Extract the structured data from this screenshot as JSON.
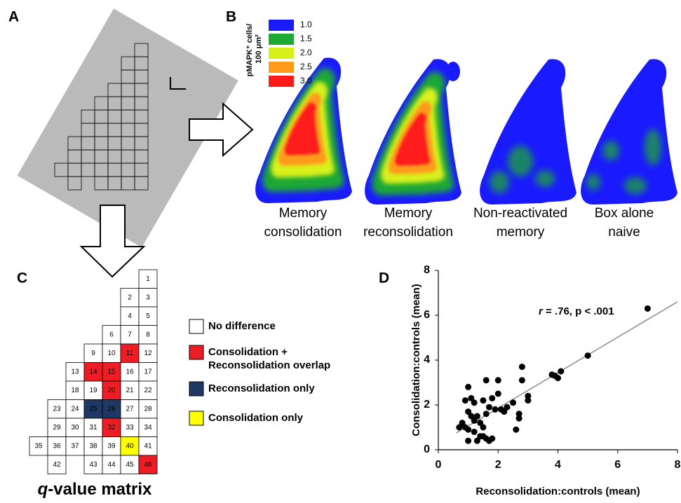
{
  "panel_labels": [
    "A",
    "B",
    "C",
    "D"
  ],
  "heatmap": {
    "legend_title": [
      "pMAPK⁺ cells/",
      "100 μm²"
    ],
    "legend": [
      {
        "label": "1.0",
        "color": "#1a1aff"
      },
      {
        "label": "1.5",
        "color": "#1fa834"
      },
      {
        "label": "2.0",
        "color": "#d8f01a"
      },
      {
        "label": "2.5",
        "color": "#ff9a1a"
      },
      {
        "label": "3.0",
        "color": "#ff1a1a"
      }
    ],
    "captions": [
      [
        "Memory",
        "consolidation"
      ],
      [
        "Memory",
        "reconsolidation"
      ],
      [
        "Non-reactivated",
        "memory"
      ],
      [
        "Box alone",
        "naive"
      ]
    ]
  },
  "matrix": {
    "title": "q-value matrix",
    "rows": [
      [
        null,
        null,
        null,
        null,
        null,
        null,
        {
          "label": 1,
          "color": "#ffffff"
        }
      ],
      [
        null,
        null,
        null,
        null,
        null,
        {
          "label": 2,
          "color": "#ffffff"
        },
        {
          "label": 3,
          "color": "#ffffff"
        }
      ],
      [
        null,
        null,
        null,
        null,
        null,
        {
          "label": 4,
          "color": "#ffffff"
        },
        {
          "label": 5,
          "color": "#ffffff"
        }
      ],
      [
        null,
        null,
        null,
        null,
        {
          "label": 6,
          "color": "#ffffff"
        },
        {
          "label": 7,
          "color": "#ffffff"
        },
        {
          "label": 8,
          "color": "#ffffff"
        }
      ],
      [
        null,
        null,
        null,
        {
          "label": 9,
          "color": "#ffffff"
        },
        {
          "label": 10,
          "color": "#ffffff"
        },
        {
          "label": 11,
          "color": "#ee1c25"
        },
        {
          "label": 12,
          "color": "#ffffff"
        }
      ],
      [
        null,
        null,
        {
          "label": 13,
          "color": "#ffffff"
        },
        {
          "label": 14,
          "color": "#ee1c25"
        },
        {
          "label": 15,
          "color": "#ee1c25"
        },
        {
          "label": 16,
          "color": "#ffffff"
        },
        {
          "label": 17,
          "color": "#ffffff"
        }
      ],
      [
        null,
        null,
        {
          "label": 18,
          "color": "#ffffff"
        },
        {
          "label": 19,
          "color": "#ffffff"
        },
        {
          "label": 20,
          "color": "#ee1c25"
        },
        {
          "label": 21,
          "color": "#ffffff"
        },
        {
          "label": 22,
          "color": "#ffffff"
        }
      ],
      [
        null,
        {
          "label": 23,
          "color": "#ffffff"
        },
        {
          "label": 24,
          "color": "#ffffff"
        },
        {
          "label": 25,
          "color": "#1f3864"
        },
        {
          "label": 26,
          "color": "#1f3864"
        },
        {
          "label": 27,
          "color": "#ffffff"
        },
        {
          "label": 28,
          "color": "#ffffff"
        }
      ],
      [
        null,
        {
          "label": 29,
          "color": "#ffffff"
        },
        {
          "label": 30,
          "color": "#ffffff"
        },
        {
          "label": 31,
          "color": "#ffffff"
        },
        {
          "label": 32,
          "color": "#ee1c25"
        },
        {
          "label": 33,
          "color": "#ffffff"
        },
        {
          "label": 34,
          "color": "#ffffff"
        }
      ],
      [
        {
          "label": 35,
          "color": "#ffffff"
        },
        {
          "label": 36,
          "color": "#ffffff"
        },
        {
          "label": 37,
          "color": "#ffffff"
        },
        {
          "label": 38,
          "color": "#ffffff"
        },
        {
          "label": 39,
          "color": "#ffffff"
        },
        {
          "label": 40,
          "color": "#ffff00"
        },
        {
          "label": 41,
          "color": "#ffffff"
        }
      ],
      [
        null,
        {
          "label": 42,
          "color": "#ffffff"
        },
        null,
        {
          "label": 43,
          "color": "#ffffff"
        },
        {
          "label": 44,
          "color": "#ffffff"
        },
        {
          "label": 45,
          "color": "#ffffff"
        },
        {
          "label": 46,
          "color": "#ee1c25"
        }
      ]
    ],
    "legend": [
      {
        "lines": [
          "No difference"
        ],
        "color": "#ffffff"
      },
      {
        "lines": [
          "Consolidation +",
          "Reconsolidation overlap"
        ],
        "color": "#ee1c25"
      },
      {
        "lines": [
          "Reconsolidation only"
        ],
        "color": "#1f3864"
      },
      {
        "lines": [
          "Consolidation only"
        ],
        "color": "#ffff00"
      }
    ]
  },
  "chart_data": {
    "type": "scatter",
    "xlabel": "Reconsolidation:controls (mean)",
    "ylabel": "Consolidation:controls (mean)",
    "annotation": "r = .76, p < .001",
    "xlim": [
      0,
      8
    ],
    "ylim": [
      0,
      8
    ],
    "xticks": [
      0,
      2,
      4,
      6,
      8
    ],
    "yticks": [
      0,
      2,
      4,
      6,
      8
    ],
    "color": "#000000",
    "x": [
      7.0,
      5.0,
      4.1,
      3.9,
      4.0,
      3.8,
      3.0,
      3.0,
      2.8,
      2.8,
      2.7,
      2.5,
      2.7,
      2.6,
      2.3,
      2.2,
      2.0,
      2.0,
      2.1,
      1.9,
      1.8,
      1.6,
      1.5,
      1.7,
      1.6,
      1.5,
      1.4,
      1.6,
      1.7,
      1.8,
      1.3,
      1.0,
      0.9,
      1.1,
      1.2,
      1.0,
      1.1,
      1.2,
      1.3,
      1.4,
      0.9,
      0.8,
      0.7,
      1.0,
      1.2,
      1.0,
      1.5
    ],
    "values": [
      6.3,
      4.2,
      3.5,
      3.3,
      3.2,
      3.35,
      2.4,
      2.2,
      3.7,
      3.1,
      1.6,
      2.1,
      1.4,
      0.9,
      1.9,
      1.7,
      3.1,
      2.5,
      1.8,
      1.8,
      2.3,
      3.1,
      2.2,
      1.9,
      1.6,
      1.0,
      0.6,
      0.5,
      0.4,
      0.5,
      0.4,
      2.8,
      2.2,
      2.3,
      2.1,
      1.7,
      1.5,
      1.3,
      1.5,
      1.2,
      1.0,
      1.2,
      1.0,
      0.9,
      0.8,
      0.4,
      0.6
    ],
    "trend": {
      "x": [
        0.6,
        8
      ],
      "values": [
        0.75,
        6.6
      ],
      "color": "#8c8c8c"
    }
  }
}
